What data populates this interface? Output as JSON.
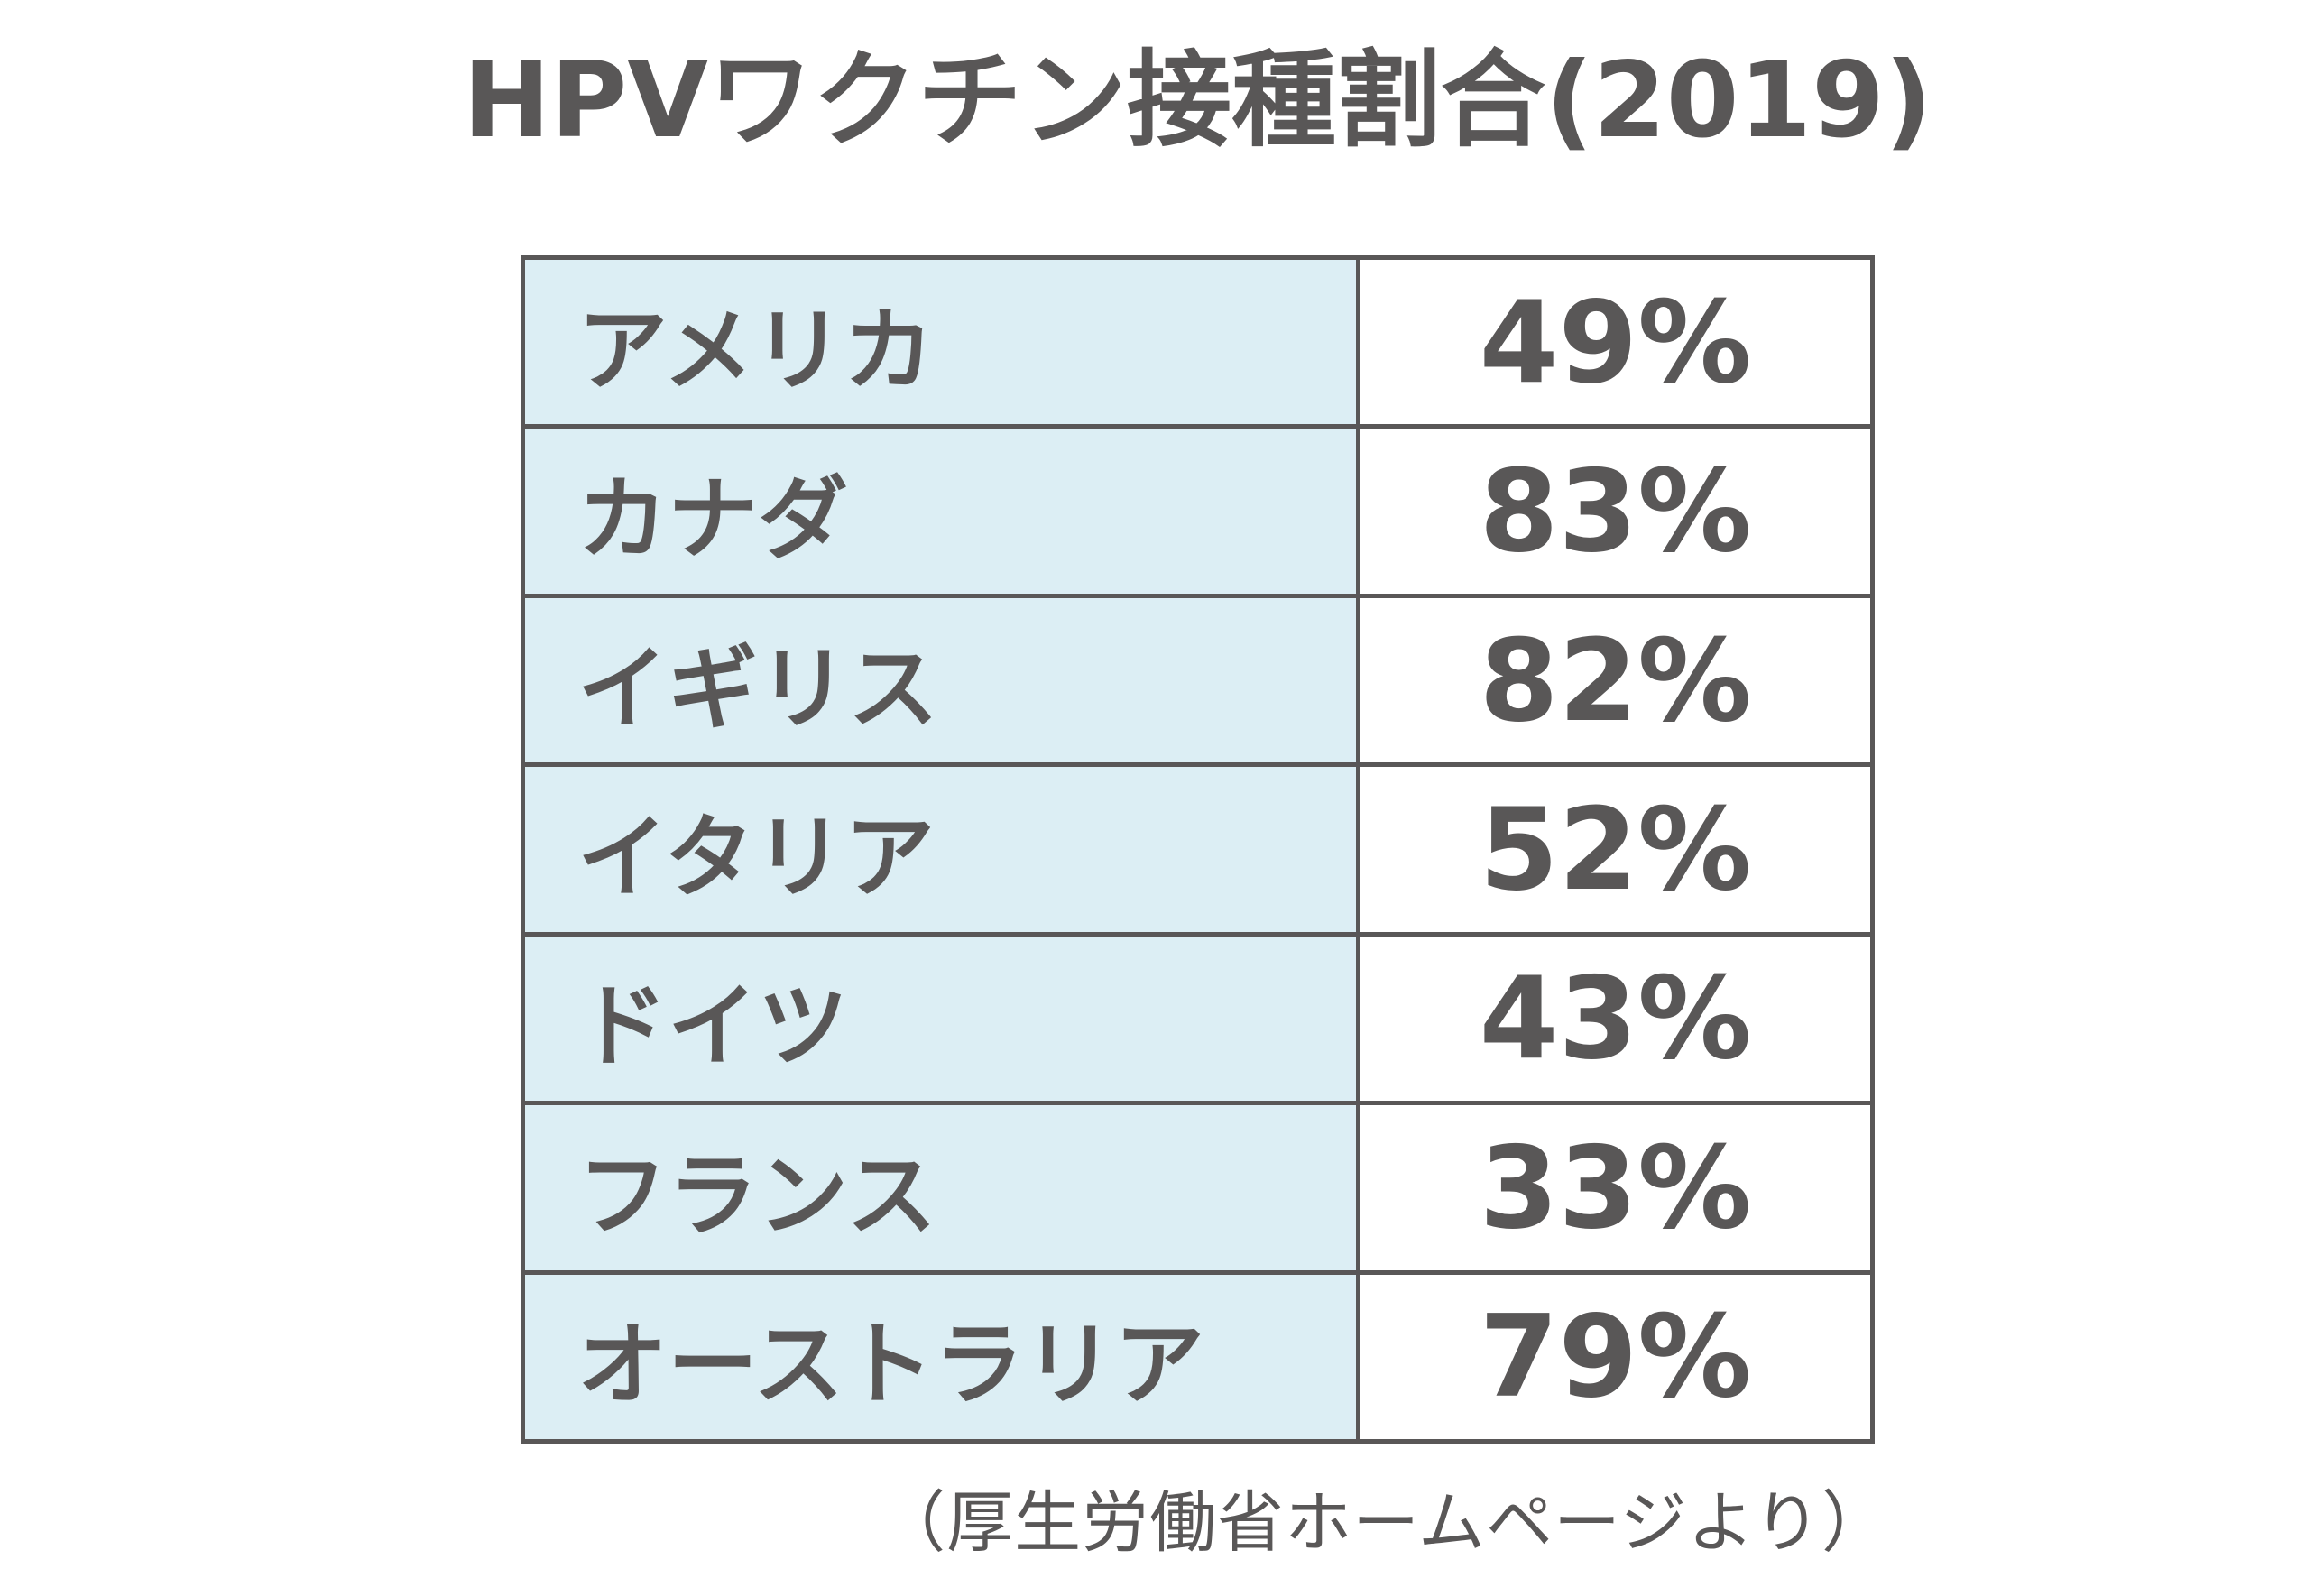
{
  "page": {
    "title": "HPVワクチン接種割合(2019)",
    "source_note": "（厚生労働省ホームページより）"
  },
  "colors": {
    "text": "#595757",
    "table_border": "#595757",
    "country_cell_bg": "#dceef4",
    "rate_cell_bg": "#ffffff",
    "page_bg": "#ffffff"
  },
  "rows": [
    {
      "country": "アメリカ",
      "rate": "49%"
    },
    {
      "country": "カナダ",
      "rate": "83%"
    },
    {
      "country": "イギリス",
      "rate": "82%"
    },
    {
      "country": "イタリア",
      "rate": "52%"
    },
    {
      "country": "ドイツ",
      "rate": "43%"
    },
    {
      "country": "フランス",
      "rate": "33%"
    },
    {
      "country": "オーストラリア",
      "rate": "79%"
    }
  ],
  "chart_data": {
    "type": "table",
    "title": "HPVワクチン接種割合(2019)",
    "categories": [
      "アメリカ",
      "カナダ",
      "イギリス",
      "イタリア",
      "ドイツ",
      "フランス",
      "オーストラリア"
    ],
    "values": [
      49,
      83,
      82,
      52,
      43,
      33,
      79
    ],
    "value_unit": "%",
    "value_labels": [
      "49%",
      "83%",
      "82%",
      "52%",
      "43%",
      "33%",
      "79%"
    ],
    "source_note": "（厚生労働省ホームページより）",
    "legend": "none",
    "grid": "table-borders"
  }
}
